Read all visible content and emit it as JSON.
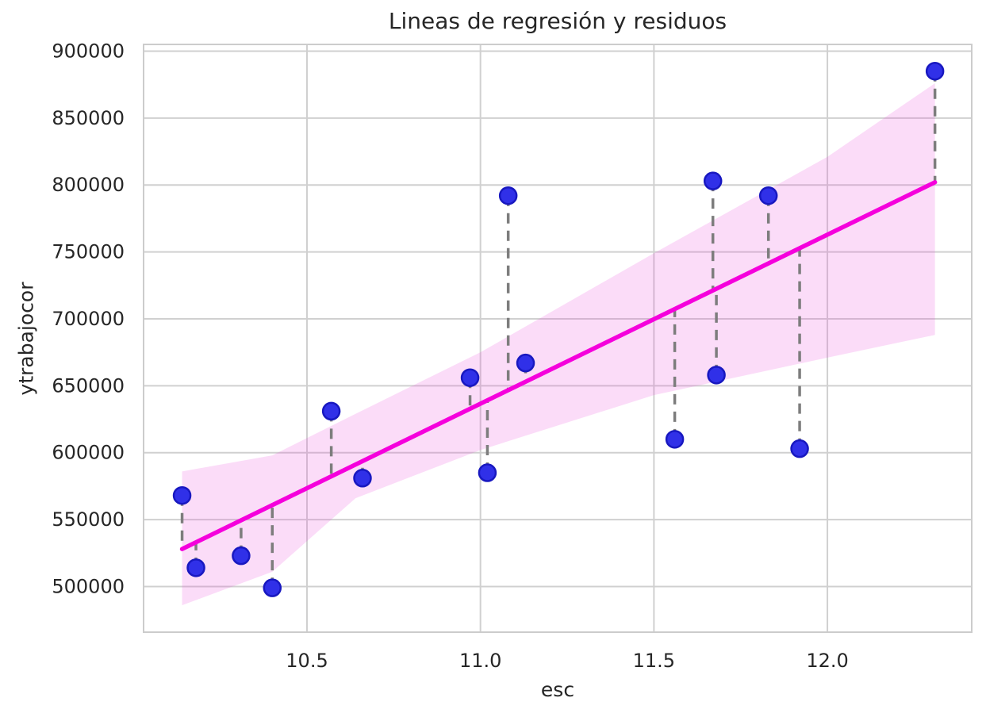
{
  "chart_data": {
    "type": "scatter",
    "title": "Lineas de regresión y residuos",
    "xlabel": "esc",
    "ylabel": "ytrabajocor",
    "xlim": [
      10.029,
      12.416
    ],
    "ylim": [
      465900,
      905000
    ],
    "grid": true,
    "legend": false,
    "x_ticks": [
      {
        "value": 10.5,
        "label": "10.5"
      },
      {
        "value": 11.0,
        "label": "11.0"
      },
      {
        "value": 11.5,
        "label": "11.5"
      },
      {
        "value": 12.0,
        "label": "12.0"
      }
    ],
    "y_ticks": [
      {
        "value": 500000,
        "label": "500000"
      },
      {
        "value": 550000,
        "label": "550000"
      },
      {
        "value": 600000,
        "label": "600000"
      },
      {
        "value": 650000,
        "label": "650000"
      },
      {
        "value": 700000,
        "label": "700000"
      },
      {
        "value": 750000,
        "label": "750000"
      },
      {
        "value": 800000,
        "label": "800000"
      },
      {
        "value": 850000,
        "label": "850000"
      },
      {
        "value": 900000,
        "label": "900000"
      }
    ],
    "points": [
      {
        "x": 10.14,
        "y": 568000
      },
      {
        "x": 10.18,
        "y": 514000
      },
      {
        "x": 10.31,
        "y": 523000
      },
      {
        "x": 10.4,
        "y": 499000
      },
      {
        "x": 10.57,
        "y": 631000
      },
      {
        "x": 10.66,
        "y": 581000
      },
      {
        "x": 10.97,
        "y": 656000
      },
      {
        "x": 11.02,
        "y": 585000
      },
      {
        "x": 11.08,
        "y": 792000
      },
      {
        "x": 11.13,
        "y": 667000
      },
      {
        "x": 11.56,
        "y": 610000
      },
      {
        "x": 11.67,
        "y": 803000
      },
      {
        "x": 11.68,
        "y": 658000
      },
      {
        "x": 11.83,
        "y": 792000
      },
      {
        "x": 11.92,
        "y": 603000
      },
      {
        "x": 12.31,
        "y": 885000
      }
    ],
    "regression_line": {
      "x1": 10.14,
      "y1": 528000,
      "x2": 12.31,
      "y2": 802000
    },
    "confidence_band": [
      {
        "x": 10.14,
        "top": 586000,
        "bottom": 486000
      },
      {
        "x": 10.4,
        "top": 598000,
        "bottom": 511000
      },
      {
        "x": 10.64,
        "top": 629000,
        "bottom": 566000
      },
      {
        "x": 11.0,
        "top": 675000,
        "bottom": 602000
      },
      {
        "x": 11.5,
        "top": 749000,
        "bottom": 643000
      },
      {
        "x": 12.0,
        "top": 821000,
        "bottom": 671000
      },
      {
        "x": 12.31,
        "top": 876000,
        "bottom": 688000
      }
    ],
    "colors": {
      "regression_line": "#f500dc",
      "confidence_band": "rgba(235,80,220,0.2)",
      "point_fill": "#3030e8",
      "point_edge": "#1818c0",
      "residual_line": "#7d7d7d",
      "grid_line": "#d0d0d0",
      "spine": "#cccccc",
      "text": "#262626",
      "background": "#ffffff"
    }
  }
}
